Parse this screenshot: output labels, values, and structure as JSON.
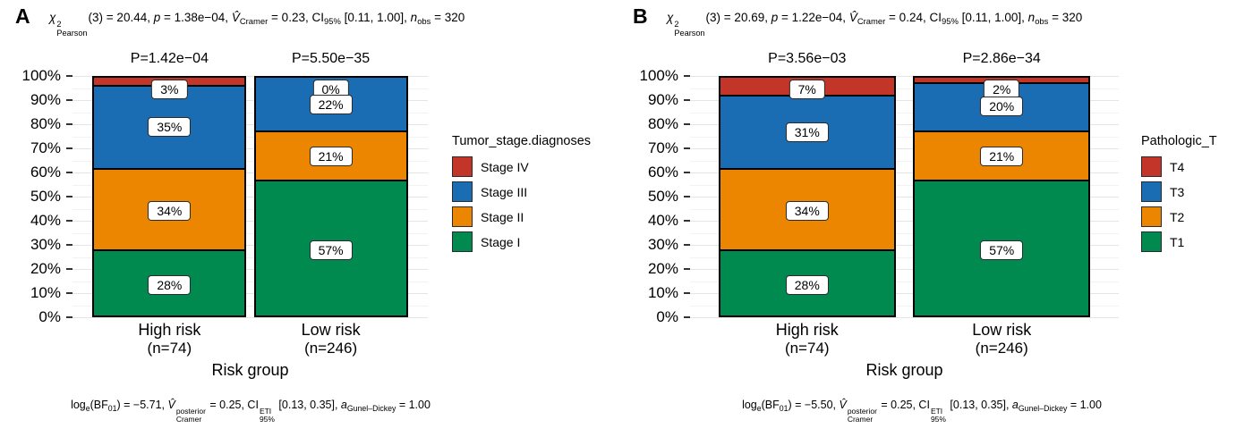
{
  "colors": {
    "stage4_red": "#c23528",
    "stage3_blue": "#1a6cb3",
    "stage2_orange": "#ec8500",
    "stage1_green": "#008a50",
    "grid_major": "#e5e5e5",
    "grid_minor": "#f2f2f2"
  },
  "chart_data": [
    {
      "type": "bar",
      "subtype": "stacked-percent",
      "panel": "A",
      "title": "chi2_Pearson(3) = 20.44, p = 1.38e-04, V_Cramer = 0.23, CI_95% [0.11, 1.00], n_obs = 320",
      "categories": [
        "High risk (n=74)",
        "Low risk (n=246)"
      ],
      "series": [
        {
          "name": "Stage IV",
          "color": "#c23528",
          "values": [
            3,
            0
          ]
        },
        {
          "name": "Stage III",
          "color": "#1a6cb3",
          "values": [
            35,
            22
          ]
        },
        {
          "name": "Stage II",
          "color": "#ec8500",
          "values": [
            34,
            21
          ]
        },
        {
          "name": "Stage I",
          "color": "#008a50",
          "values": [
            28,
            57
          ]
        }
      ],
      "p_labels": [
        "P=1.42e−04",
        "P=5.50e−35"
      ],
      "legend_title": "Tumor_stage.diagnoses",
      "xlabel": "Risk group",
      "ylabel": "",
      "ylim": [
        0,
        100
      ],
      "y_ticks": [
        "0%",
        "10%",
        "20%",
        "30%",
        "40%",
        "50%",
        "60%",
        "70%",
        "80%",
        "90%",
        "100%"
      ],
      "grid": true,
      "legend_position": "right",
      "caption": "log_e(BF_01) = -5.71, V_Cramer^posterior = 0.25, CI_95%^ETI [0.13, 0.35], a_Gunel-Dickey = 1.00"
    },
    {
      "type": "bar",
      "subtype": "stacked-percent",
      "panel": "B",
      "title": "chi2_Pearson(3) = 20.69, p = 1.22e-04, V_Cramer = 0.24, CI_95% [0.11, 1.00], n_obs = 320",
      "categories": [
        "High risk (n=74)",
        "Low risk (n=246)"
      ],
      "series": [
        {
          "name": "T4",
          "color": "#c23528",
          "values": [
            7,
            2
          ]
        },
        {
          "name": "T3",
          "color": "#1a6cb3",
          "values": [
            31,
            20
          ]
        },
        {
          "name": "T2",
          "color": "#ec8500",
          "values": [
            34,
            21
          ]
        },
        {
          "name": "T1",
          "color": "#008a50",
          "values": [
            28,
            57
          ]
        }
      ],
      "p_labels": [
        "P=3.56e−03",
        "P=2.86e−34"
      ],
      "legend_title": "Pathologic_T",
      "xlabel": "Risk group",
      "ylabel": "",
      "ylim": [
        0,
        100
      ],
      "y_ticks": [
        "0%",
        "10%",
        "20%",
        "30%",
        "40%",
        "50%",
        "60%",
        "70%",
        "80%",
        "90%",
        "100%"
      ],
      "grid": true,
      "legend_position": "right",
      "caption": "log_e(BF_01) = -5.50, V_Cramer^posterior = 0.25, CI_95%^ETI [0.13, 0.35], a_Gunel-Dickey = 1.00"
    }
  ],
  "panels": [
    {
      "letter": "A",
      "x_axis_title": "Risk group",
      "categories_display": [
        {
          "line1": "High risk",
          "line2": "(n=74)"
        },
        {
          "line1": "Low risk",
          "line2": "(n=246)"
        }
      ],
      "top_stats": [
        {
          "t": "χ",
          "c": "i"
        },
        {
          "sup": "2",
          "sub": "Pearson"
        },
        {
          "t": "(3) = 20.44, "
        },
        {
          "t": "p",
          "c": "i"
        },
        {
          "t": " = 1.38e−04, "
        },
        {
          "t": "V̂",
          "c": "i"
        },
        {
          "sub": "Cramer"
        },
        {
          "t": " = 0.23, CI"
        },
        {
          "sub": "95%"
        },
        {
          "t": " [0.11, 1.00], "
        },
        {
          "t": "n",
          "c": "i"
        },
        {
          "sub": "obs"
        },
        {
          "t": " = 320"
        }
      ],
      "caption": [
        {
          "t": "log"
        },
        {
          "sub": "e"
        },
        {
          "t": "(BF"
        },
        {
          "sub": "01"
        },
        {
          "t": ") = −5.71, "
        },
        {
          "t": "V̂",
          "c": "i"
        },
        {
          "sup": "posterior",
          "sub": "Cramer"
        },
        {
          "t": " = 0.25, CI"
        },
        {
          "sup": "ETI",
          "sub": "95%"
        },
        {
          "t": " [0.13, 0.35], "
        },
        {
          "t": "a",
          "c": "i"
        },
        {
          "sub": "Gunel–Dickey"
        },
        {
          "t": " = 1.00"
        }
      ]
    },
    {
      "letter": "B",
      "x_axis_title": "Risk group",
      "categories_display": [
        {
          "line1": "High risk",
          "line2": "(n=74)"
        },
        {
          "line1": "Low risk",
          "line2": "(n=246)"
        }
      ],
      "top_stats": [
        {
          "t": "χ",
          "c": "i"
        },
        {
          "sup": "2",
          "sub": "Pearson"
        },
        {
          "t": "(3) = 20.69, "
        },
        {
          "t": "p",
          "c": "i"
        },
        {
          "t": " = 1.22e−04, "
        },
        {
          "t": "V̂",
          "c": "i"
        },
        {
          "sub": "Cramer"
        },
        {
          "t": " = 0.24, CI"
        },
        {
          "sub": "95%"
        },
        {
          "t": " [0.11, 1.00], "
        },
        {
          "t": "n",
          "c": "i"
        },
        {
          "sub": "obs"
        },
        {
          "t": " = 320"
        }
      ],
      "caption": [
        {
          "t": "log"
        },
        {
          "sub": "e"
        },
        {
          "t": "(BF"
        },
        {
          "sub": "01"
        },
        {
          "t": ") = −5.50, "
        },
        {
          "t": "V̂",
          "c": "i"
        },
        {
          "sup": "posterior",
          "sub": "Cramer"
        },
        {
          "t": " = 0.25, CI"
        },
        {
          "sup": "ETI",
          "sub": "95%"
        },
        {
          "t": " [0.13, 0.35], "
        },
        {
          "t": "a",
          "c": "i"
        },
        {
          "sub": "Gunel–Dickey"
        },
        {
          "t": " = 1.00"
        }
      ]
    }
  ]
}
